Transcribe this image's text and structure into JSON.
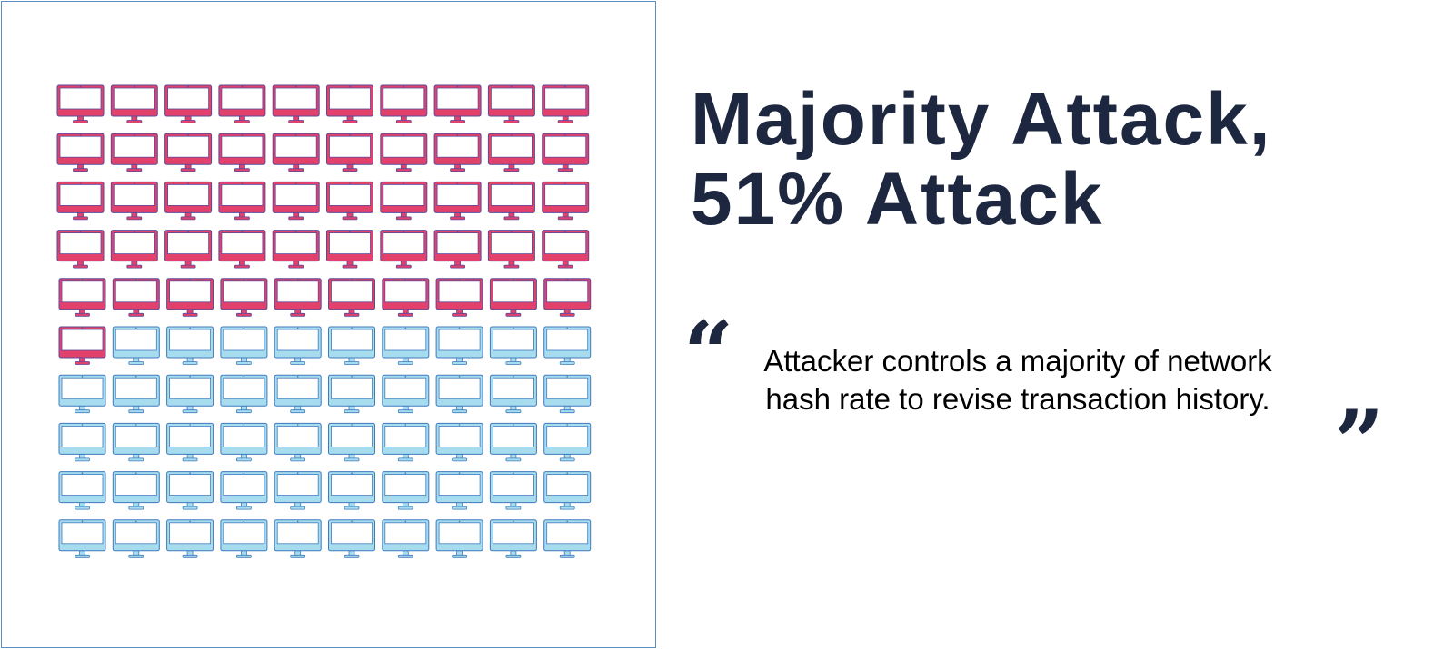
{
  "headline": {
    "line1": "Majority Attack,",
    "line2": "51% Attack"
  },
  "quote": {
    "open_mark": "“",
    "text": "Attacker controls a majority of network hash rate to revise transaction history.",
    "close_mark": "”"
  },
  "network_grid": {
    "rows": 10,
    "columns": 10,
    "attacker_nodes": 51,
    "honest_nodes": 49,
    "icon": "desktop-monitor-icon",
    "colors": {
      "attacker_fill": "#e2416b",
      "attacker_outline": "#5a4a9a",
      "honest_fill": "#a6dcee",
      "honest_outline": "#3f7bbf",
      "screen": "#ffffff",
      "frame": "#5f8fc0",
      "text": "#1e2740"
    }
  }
}
